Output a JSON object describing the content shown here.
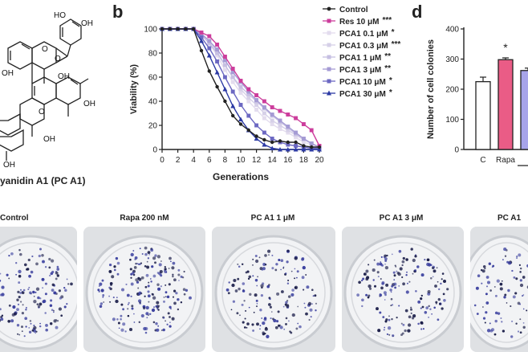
{
  "panels": {
    "b_letter": "b",
    "d_letter": "d"
  },
  "structure": {
    "label": "yanidin A1 (PC A1)",
    "atoms": {
      "oh_top1": "HO",
      "oh_top2": "OH",
      "o_ring1": "O",
      "o_ring2": "O",
      "oh_mid": "OH",
      "oh_left": "OH",
      "oh_right": "OH",
      "o_ring3": "O",
      "oh_bottom": "OH",
      "oh_low_left": "OH"
    }
  },
  "chart_b": {
    "ylabel": "Viability (%)",
    "xlabel": "Generations",
    "legend": [
      {
        "label": "Control",
        "sig": "",
        "color": "#222222",
        "marker": "dot"
      },
      {
        "label": "Res 10 μM",
        "sig": "***",
        "color": "#cc3d9c",
        "marker": "square"
      },
      {
        "label": "PCA1 0.1 μM",
        "sig": "*",
        "color": "#e3dcee",
        "marker": "square"
      },
      {
        "label": "PCA1 0.3 μM",
        "sig": "***",
        "color": "#d6d0e8",
        "marker": "square"
      },
      {
        "label": "PCA1 1 μM",
        "sig": "**",
        "color": "#c6bfe2",
        "marker": "square"
      },
      {
        "label": "PCA1 3 μM",
        "sig": "**",
        "color": "#a59bd4",
        "marker": "square"
      },
      {
        "label": "PCA1 10 μM",
        "sig": "*",
        "color": "#6c68c2",
        "marker": "square"
      },
      {
        "label": "PCA1 30 μM",
        "sig": "*",
        "color": "#2c3aa4",
        "marker": "triangle"
      }
    ]
  },
  "chart_data": [
    {
      "type": "line",
      "xlabel": "Generations",
      "ylabel": "Viability (%)",
      "xlim": [
        0,
        20
      ],
      "ylim": [
        0,
        100
      ],
      "xticks": [
        0,
        2,
        4,
        6,
        8,
        10,
        12,
        14,
        16,
        18,
        20
      ],
      "yticks": [
        0,
        20,
        40,
        60,
        80,
        100
      ],
      "x": [
        0,
        1,
        2,
        3,
        4,
        5,
        6,
        7,
        8,
        9,
        10,
        11,
        12,
        13,
        14,
        15,
        16,
        17,
        18,
        19,
        20
      ],
      "series": [
        {
          "name": "Control",
          "color": "#222222",
          "values": [
            100,
            100,
            100,
            100,
            100,
            82,
            65,
            52,
            40,
            28,
            21,
            16,
            11,
            8,
            6,
            7,
            6,
            6,
            3,
            2,
            2
          ]
        },
        {
          "name": "Res 10 μM",
          "color": "#cc3d9c",
          "values": [
            100,
            100,
            100,
            100,
            100,
            97,
            94,
            87,
            77,
            67,
            57,
            50,
            45,
            40,
            35,
            32,
            29,
            26,
            21,
            16,
            3
          ]
        },
        {
          "name": "PCA1 0.1 μM",
          "color": "#e3dcee",
          "values": [
            100,
            100,
            100,
            100,
            100,
            95,
            88,
            78,
            66,
            56,
            47,
            40,
            33,
            26,
            21,
            17,
            14,
            10,
            6,
            4,
            2
          ]
        },
        {
          "name": "PCA1 0.3 μM",
          "color": "#d6d0e8",
          "values": [
            100,
            100,
            100,
            100,
            100,
            96,
            90,
            81,
            70,
            60,
            50,
            43,
            37,
            30,
            24,
            20,
            16,
            12,
            8,
            5,
            2
          ]
        },
        {
          "name": "PCA1 1 μM",
          "color": "#c6bfe2",
          "values": [
            100,
            100,
            100,
            100,
            100,
            95,
            88,
            80,
            70,
            60,
            52,
            46,
            40,
            34,
            28,
            23,
            18,
            13,
            9,
            5,
            2
          ]
        },
        {
          "name": "PCA1 3 μM",
          "color": "#a59bd4",
          "values": [
            100,
            100,
            100,
            100,
            100,
            96,
            90,
            83,
            74,
            64,
            56,
            48,
            41,
            35,
            29,
            24,
            19,
            14,
            9,
            5,
            2
          ]
        },
        {
          "name": "PCA1 10 μM",
          "color": "#6c68c2",
          "values": [
            100,
            100,
            100,
            100,
            100,
            93,
            84,
            73,
            60,
            48,
            37,
            28,
            20,
            14,
            9,
            6,
            4,
            3,
            2,
            1,
            1
          ]
        },
        {
          "name": "PCA1 30 μM",
          "color": "#2c3aa4",
          "values": [
            100,
            100,
            100,
            100,
            100,
            90,
            78,
            64,
            50,
            36,
            25,
            16,
            9,
            4,
            1,
            0,
            0,
            0,
            0,
            0,
            0
          ]
        }
      ]
    },
    {
      "type": "bar",
      "ylabel": "Number of cell colonies",
      "ylim": [
        0,
        400
      ],
      "yticks": [
        0,
        100,
        200,
        300,
        400
      ],
      "categories": [
        "C",
        "Rapa",
        ""
      ],
      "values": [
        225,
        298,
        262
      ],
      "errors": [
        15,
        6,
        8
      ],
      "colors": [
        "#ffffff",
        "#ea5c86",
        "#a7a4ea"
      ],
      "annotations": [
        "",
        "*",
        ""
      ]
    }
  ],
  "plates": [
    {
      "label": "Control"
    },
    {
      "label": "Rapa 200 nM"
    },
    {
      "label": "PC A1 1 μM"
    },
    {
      "label": "PC A1 3 μM"
    },
    {
      "label": "PC A1"
    }
  ]
}
